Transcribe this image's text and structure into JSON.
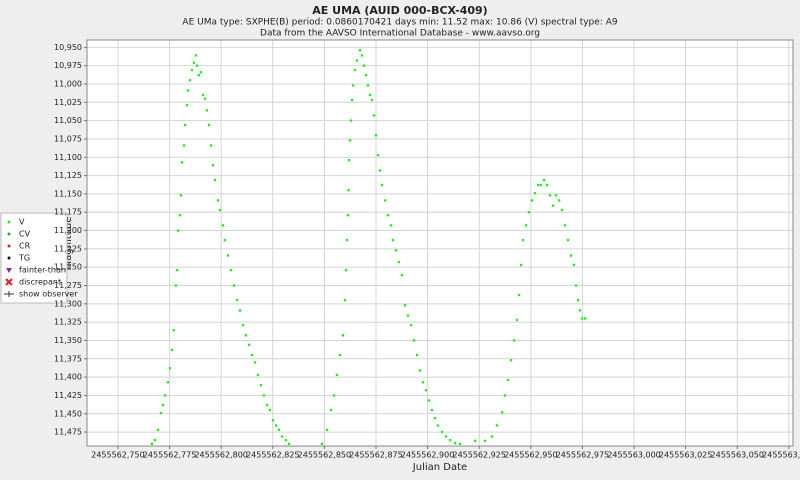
{
  "chart_data": {
    "type": "scatter",
    "title": "AE UMA   (AUID 000-BCX-409)",
    "subtitle": "AE UMa   type: SXPHE(B)   period: 0.0860170421 days   min: 11.52   max: 10.86 (V)   spectral type: A9",
    "source": "Data from the AAVSO International Database - www.aavso.org",
    "x_label": "Julian Date",
    "y_label": "Magnitude",
    "legend_items": [
      "CV",
      "CR",
      "TG",
      "fainter-than",
      "discrepant",
      "show observer"
    ],
    "grid": true,
    "y_inverted": true,
    "xlim": [
      2455562.735,
      2455563.077
    ],
    "ylim": [
      10.94,
      11.494
    ],
    "xticks": [
      {
        "value": 2455562.75,
        "label": "2455562,750"
      },
      {
        "value": 2455562.775,
        "label": "2455562,775"
      },
      {
        "value": 2455562.8,
        "label": "2455562,800"
      },
      {
        "value": 2455562.825,
        "label": "2455562,825"
      },
      {
        "value": 2455562.85,
        "label": "2455562,850"
      },
      {
        "value": 2455562.875,
        "label": "2455562,875"
      },
      {
        "value": 2455562.9,
        "label": "2455562,900"
      },
      {
        "value": 2455562.925,
        "label": "2455562,925"
      },
      {
        "value": 2455562.95,
        "label": "2455562,950"
      },
      {
        "value": 2455562.975,
        "label": "2455562,975"
      },
      {
        "value": 2455563.0,
        "label": "2455563,000"
      },
      {
        "value": 2455563.025,
        "label": "2455563,025"
      },
      {
        "value": 2455563.05,
        "label": "2455563,050"
      },
      {
        "value": 2455563.075,
        "label": "2455563,075"
      }
    ],
    "yticks": [
      {
        "value": 10.95,
        "label": "10,950"
      },
      {
        "value": 10.975,
        "label": "10,975"
      },
      {
        "value": 11.0,
        "label": "11,000"
      },
      {
        "value": 11.025,
        "label": "11,025"
      },
      {
        "value": 11.05,
        "label": "11,050"
      },
      {
        "value": 11.075,
        "label": "11,075"
      },
      {
        "value": 11.1,
        "label": "11,100"
      },
      {
        "value": 11.125,
        "label": "11,125"
      },
      {
        "value": 11.15,
        "label": "11,150"
      },
      {
        "value": 11.175,
        "label": "11,175"
      },
      {
        "value": 11.2,
        "label": "11,200"
      },
      {
        "value": 11.225,
        "label": "11,225"
      },
      {
        "value": 11.25,
        "label": "11,250"
      },
      {
        "value": 11.275,
        "label": "11,275"
      },
      {
        "value": 11.3,
        "label": "11,300"
      },
      {
        "value": 11.325,
        "label": "11,325"
      },
      {
        "value": 11.35,
        "label": "11,350"
      },
      {
        "value": 11.375,
        "label": "11,375"
      },
      {
        "value": 11.4,
        "label": "11,400"
      },
      {
        "value": 11.425,
        "label": "11,425"
      },
      {
        "value": 11.45,
        "label": "11,450"
      },
      {
        "value": 11.475,
        "label": "11,475"
      }
    ],
    "series": [
      {
        "name": "V",
        "color": "#22ee22",
        "x": [
          2455562.7665,
          2455562.7679,
          2455562.7694,
          2455562.7708,
          2455562.7718,
          2455562.7728,
          2455562.7742,
          2455562.7752,
          2455562.7762,
          2455562.7771,
          2455562.7781,
          2455562.7786,
          2455562.7791,
          2455562.78,
          2455562.7805,
          2455562.781,
          2455562.782,
          2455562.7825,
          2455562.7834,
          2455562.7839,
          2455562.7849,
          2455562.7859,
          2455562.7868,
          2455562.7878,
          2455562.7883,
          2455562.7892,
          2455562.7902,
          2455562.7912,
          2455562.7922,
          2455562.7931,
          2455562.7941,
          2455562.7951,
          2455562.796,
          2455562.797,
          2455562.7985,
          2455562.7994,
          2455562.8009,
          2455562.8018,
          2455562.8033,
          2455562.8048,
          2455562.8062,
          2455562.8077,
          2455562.8091,
          2455562.8106,
          2455562.812,
          2455562.8135,
          2455562.8149,
          2455562.8164,
          2455562.8178,
          2455562.8193,
          2455562.8207,
          2455562.8222,
          2455562.8236,
          2455562.8251,
          2455562.8266,
          2455562.828,
          2455562.8295,
          2455562.8314,
          2455562.8329,
          2455562.8488,
          2455562.8513,
          2455562.8532,
          2455562.8547,
          2455562.8561,
          2455562.8576,
          2455562.859,
          2455562.86,
          2455562.8605,
          2455562.861,
          2455562.8614,
          2455562.8617,
          2455562.8619,
          2455562.8624,
          2455562.8629,
          2455562.8634,
          2455562.8639,
          2455562.8648,
          2455562.8658,
          2455562.8673,
          2455562.8682,
          2455562.8692,
          2455562.8702,
          2455562.8711,
          2455562.8721,
          2455562.8731,
          2455562.874,
          2455562.875,
          2455562.876,
          2455562.8769,
          2455562.8779,
          2455562.8794,
          2455562.8808,
          2455562.8823,
          2455562.8832,
          2455562.8847,
          2455562.8861,
          2455562.8876,
          2455562.8891,
          2455562.8905,
          2455562.892,
          2455562.8934,
          2455562.8949,
          2455562.8963,
          2455562.8978,
          2455562.8992,
          2455562.9007,
          2455562.9021,
          2455562.9036,
          2455562.905,
          2455562.907,
          2455562.9089,
          2455562.9109,
          2455562.9133,
          2455562.9157,
          2455562.923,
          2455562.9278,
          2455562.9312,
          2455562.9336,
          2455562.9361,
          2455562.9375,
          2455562.939,
          2455562.9404,
          2455562.9419,
          2455562.9433,
          2455562.9443,
          2455562.9453,
          2455562.9462,
          2455562.9477,
          2455562.9491,
          2455562.9506,
          2455562.952,
          2455562.9535,
          2455562.9549,
          2455562.9564,
          2455562.9579,
          2455562.9593,
          2455562.9608,
          2455562.9622,
          2455562.9637,
          2455562.9651,
          2455562.9666,
          2455562.968,
          2455562.9695,
          2455562.9709,
          2455562.9719,
          2455562.9729,
          2455562.9738,
          2455562.9748,
          2455562.9763
        ],
        "values": [
          11.491,
          11.486,
          11.472,
          11.449,
          11.438,
          11.425,
          11.407,
          11.388,
          11.363,
          11.336,
          11.275,
          11.254,
          11.2,
          11.179,
          11.152,
          11.107,
          11.084,
          11.056,
          11.029,
          11.009,
          10.995,
          10.981,
          10.971,
          10.961,
          10.975,
          10.988,
          10.984,
          11.015,
          11.02,
          11.036,
          11.056,
          11.084,
          11.111,
          11.131,
          11.159,
          11.172,
          11.193,
          11.213,
          11.234,
          11.254,
          11.275,
          11.295,
          11.309,
          11.329,
          11.343,
          11.356,
          11.37,
          11.38,
          11.397,
          11.411,
          11.425,
          11.438,
          11.445,
          11.459,
          11.466,
          11.472,
          11.481,
          11.486,
          11.491,
          11.491,
          11.472,
          11.445,
          11.425,
          11.397,
          11.37,
          11.343,
          11.295,
          11.254,
          11.213,
          11.179,
          11.145,
          11.104,
          11.077,
          11.05,
          11.022,
          11.002,
          10.981,
          10.968,
          10.954,
          10.961,
          10.975,
          10.988,
          11.002,
          11.015,
          11.022,
          11.043,
          11.07,
          11.097,
          11.118,
          11.138,
          11.159,
          11.179,
          11.193,
          11.213,
          11.227,
          11.243,
          11.261,
          11.302,
          11.316,
          11.329,
          11.35,
          11.37,
          11.391,
          11.407,
          11.418,
          11.432,
          11.445,
          11.456,
          11.466,
          11.475,
          11.481,
          11.486,
          11.49,
          11.491,
          11.487,
          11.487,
          11.481,
          11.466,
          11.448,
          11.425,
          11.404,
          11.377,
          11.35,
          11.322,
          11.288,
          11.247,
          11.213,
          11.193,
          11.175,
          11.159,
          11.149,
          11.138,
          11.138,
          11.131,
          11.138,
          11.152,
          11.166,
          11.152,
          11.159,
          11.172,
          11.193,
          11.213,
          11.234,
          11.247,
          11.275,
          11.295,
          11.309,
          11.32,
          11.32
        ]
      }
    ]
  }
}
